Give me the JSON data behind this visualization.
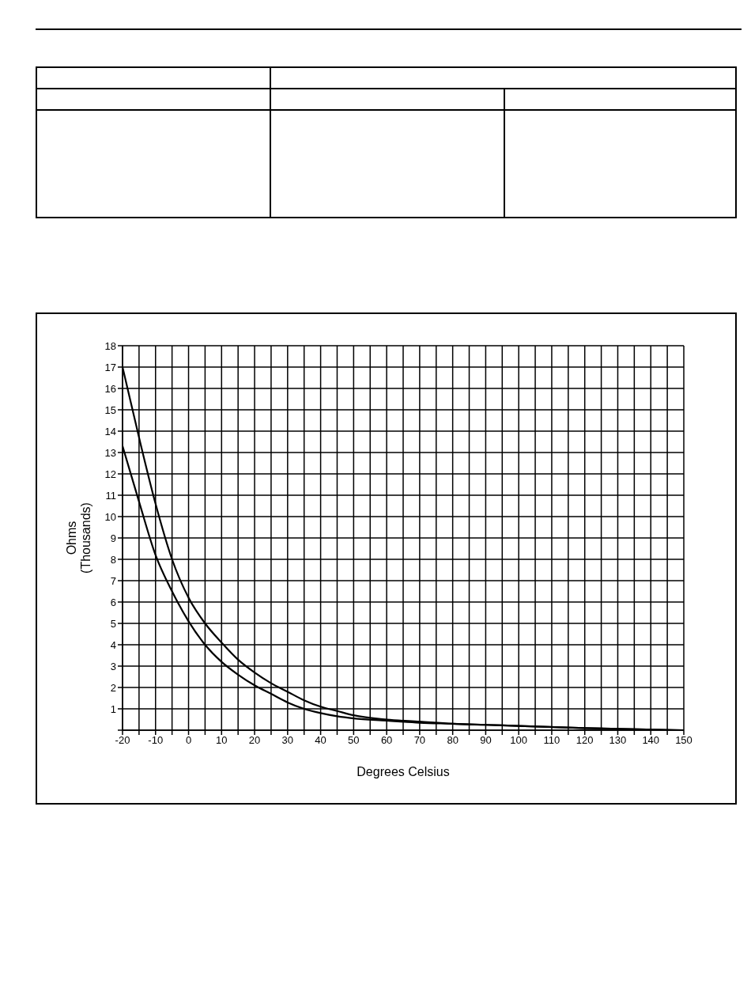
{
  "chart_data": {
    "type": "line",
    "xlabel": "Degrees Celsius",
    "ylabel": "Ohms\n(Thousands)",
    "xlim": [
      -20,
      150
    ],
    "ylim": [
      0,
      18
    ],
    "xticks": [
      -20,
      {
        "value": -15,
        "label": null
      },
      -10,
      {
        "value": -5,
        "label": null
      },
      0,
      {
        "value": 5,
        "label": null
      },
      10,
      {
        "value": 15,
        "label": null
      },
      20,
      {
        "value": 25,
        "label": null
      },
      30,
      {
        "value": 35,
        "label": null
      },
      40,
      {
        "value": 45,
        "label": null
      },
      50,
      {
        "value": 55,
        "label": null
      },
      60,
      {
        "value": 65,
        "label": null
      },
      70,
      {
        "value": 75,
        "label": null
      },
      80,
      {
        "value": 85,
        "label": null
      },
      90,
      {
        "value": 95,
        "label": null
      },
      100,
      {
        "value": 105,
        "label": null
      },
      110,
      {
        "value": 115,
        "label": null
      },
      120,
      {
        "value": 125,
        "label": null
      },
      130,
      {
        "value": 135,
        "label": null
      },
      140,
      {
        "value": 145,
        "label": null
      },
      150
    ],
    "yticks": [
      {
        "value": 0,
        "label": null
      },
      1,
      2,
      3,
      4,
      5,
      6,
      7,
      8,
      9,
      10,
      11,
      12,
      13,
      14,
      15,
      16,
      17,
      18
    ],
    "grid": true,
    "marker": "none",
    "line_style": "solid",
    "x": [
      -20,
      -15,
      -10,
      -5,
      0,
      5,
      10,
      15,
      20,
      25,
      30,
      35,
      40,
      45,
      50,
      60,
      70,
      80,
      90,
      100,
      120,
      150
    ],
    "series": [
      {
        "color": "#000000",
        "values": [
          17,
          13.7,
          10.6,
          8,
          6.2,
          5,
          4.1,
          3.3,
          2.7,
          2.2,
          1.8,
          1.4,
          1.1,
          0.9,
          0.7,
          0.5,
          0.4,
          0.3,
          0.25,
          0.2,
          0.1,
          0
        ]
      },
      {
        "color": "#000000",
        "values": [
          13.3,
          10.7,
          8.2,
          6.5,
          5.1,
          4,
          3.2,
          2.6,
          2.1,
          1.7,
          1.3,
          1,
          0.8,
          0.65,
          0.55,
          0.45,
          0.35,
          0.3,
          0.25,
          0.2,
          0.1,
          0
        ]
      }
    ]
  }
}
